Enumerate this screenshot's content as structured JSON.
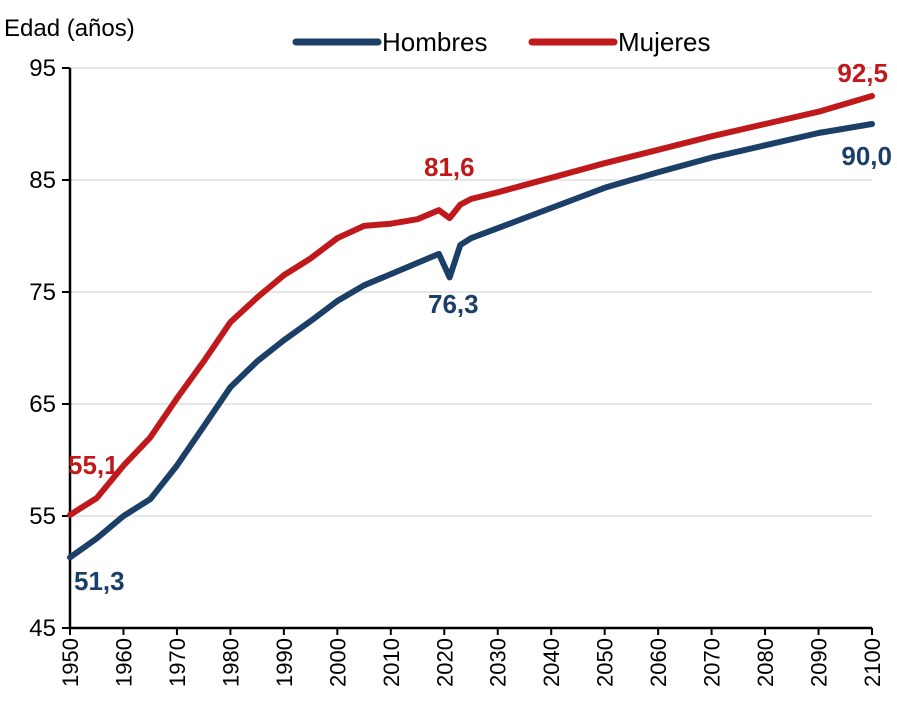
{
  "chart_data": {
    "type": "line",
    "title": "",
    "ylabel": "Edad (años)",
    "xlabel": "",
    "ylim": [
      45,
      95
    ],
    "xlim": [
      1950,
      2100
    ],
    "yticks": [
      45,
      55,
      65,
      75,
      85,
      95
    ],
    "xticks": [
      1950,
      1960,
      1970,
      1980,
      1990,
      2000,
      2010,
      2020,
      2030,
      2040,
      2050,
      2060,
      2070,
      2080,
      2090,
      2100
    ],
    "grid": true,
    "legend_position": "top",
    "x": [
      1950,
      1955,
      1960,
      1965,
      1970,
      1975,
      1980,
      1985,
      1990,
      1995,
      2000,
      2005,
      2010,
      2015,
      2019,
      2021,
      2023,
      2025,
      2030,
      2040,
      2050,
      2060,
      2070,
      2080,
      2090,
      2100
    ],
    "series": [
      {
        "name": "Hombres",
        "color": "#1b3f66",
        "values": [
          51.3,
          53.0,
          55.0,
          56.5,
          59.5,
          63.0,
          66.5,
          68.8,
          70.7,
          72.4,
          74.2,
          75.6,
          76.6,
          77.6,
          78.4,
          76.3,
          79.2,
          79.8,
          80.7,
          82.5,
          84.3,
          85.7,
          87.0,
          88.1,
          89.2,
          90.0
        ]
      },
      {
        "name": "Mujeres",
        "color": "#c0191c",
        "values": [
          55.1,
          56.6,
          59.5,
          62.0,
          65.5,
          68.8,
          72.3,
          74.5,
          76.5,
          78.0,
          79.8,
          80.9,
          81.1,
          81.5,
          82.3,
          81.6,
          82.8,
          83.3,
          83.9,
          85.2,
          86.5,
          87.7,
          88.9,
          90.0,
          91.1,
          92.5
        ]
      }
    ],
    "annotations": [
      {
        "text": "51,3",
        "series": "Hombres",
        "x": 1950,
        "y": 51.3
      },
      {
        "text": "76,3",
        "series": "Hombres",
        "x": 2021,
        "y": 76.3
      },
      {
        "text": "90,0",
        "series": "Hombres",
        "x": 2100,
        "y": 90.0
      },
      {
        "text": "55,1",
        "series": "Mujeres",
        "x": 1950,
        "y": 55.1
      },
      {
        "text": "81,6",
        "series": "Mujeres",
        "x": 2021,
        "y": 81.6
      },
      {
        "text": "92,5",
        "series": "Mujeres",
        "x": 2100,
        "y": 92.5
      }
    ]
  }
}
